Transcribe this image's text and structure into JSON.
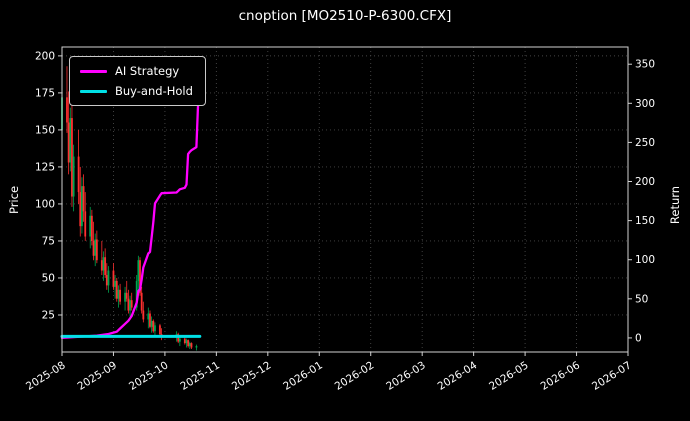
{
  "chart_data": {
    "type": "candlestick+line",
    "title": "cnoption [MO2510-P-6300.CFX]",
    "ylabel_left": "Price",
    "ylabel_right": "Return",
    "legend_position": "upper-left",
    "grid": true,
    "x_ticks": [
      "2025-08",
      "2025-09",
      "2025-10",
      "2025-11",
      "2025-12",
      "2026-01",
      "2026-02",
      "2026-03",
      "2026-04",
      "2026-05",
      "2026-06",
      "2026-07"
    ],
    "left_axis": {
      "ticks": [
        25,
        50,
        75,
        100,
        125,
        150,
        175,
        200
      ],
      "range": [
        0,
        206
      ]
    },
    "right_axis": {
      "ticks": [
        0,
        50,
        100,
        150,
        200,
        250,
        300,
        350
      ],
      "range": [
        -18,
        372
      ]
    },
    "colors": {
      "background": "#000000",
      "text": "#ffffff",
      "frame": "#d2d2d2",
      "grid": "#474747",
      "up": "#00a651",
      "down": "#ff3030",
      "ai_strategy": "#ff00ff",
      "buy_and_hold": "#00e0e6"
    },
    "candles": [
      {
        "d": "2025-08-01",
        "o": 150,
        "h": 178,
        "l": 140,
        "c": 172
      },
      {
        "d": "2025-08-04",
        "o": 172,
        "h": 193,
        "l": 148,
        "c": 155
      },
      {
        "d": "2025-08-05",
        "o": 155,
        "h": 176,
        "l": 120,
        "c": 128
      },
      {
        "d": "2025-08-06",
        "o": 128,
        "h": 165,
        "l": 122,
        "c": 158
      },
      {
        "d": "2025-08-07",
        "o": 158,
        "h": 170,
        "l": 98,
        "c": 105
      },
      {
        "d": "2025-08-08",
        "o": 105,
        "h": 140,
        "l": 95,
        "c": 132
      },
      {
        "d": "2025-08-11",
        "o": 132,
        "h": 150,
        "l": 100,
        "c": 108
      },
      {
        "d": "2025-08-12",
        "o": 108,
        "h": 125,
        "l": 78,
        "c": 85
      },
      {
        "d": "2025-08-13",
        "o": 85,
        "h": 118,
        "l": 80,
        "c": 112
      },
      {
        "d": "2025-08-14",
        "o": 112,
        "h": 120,
        "l": 88,
        "c": 95
      },
      {
        "d": "2025-08-15",
        "o": 95,
        "h": 108,
        "l": 75,
        "c": 78
      },
      {
        "d": "2025-08-18",
        "o": 78,
        "h": 98,
        "l": 70,
        "c": 92
      },
      {
        "d": "2025-08-19",
        "o": 92,
        "h": 96,
        "l": 72,
        "c": 75
      },
      {
        "d": "2025-08-20",
        "o": 75,
        "h": 88,
        "l": 62,
        "c": 65
      },
      {
        "d": "2025-08-21",
        "o": 65,
        "h": 80,
        "l": 58,
        "c": 76
      },
      {
        "d": "2025-08-22",
        "o": 76,
        "h": 82,
        "l": 60,
        "c": 62
      },
      {
        "d": "2025-08-25",
        "o": 62,
        "h": 75,
        "l": 52,
        "c": 55
      },
      {
        "d": "2025-08-26",
        "o": 55,
        "h": 68,
        "l": 48,
        "c": 64
      },
      {
        "d": "2025-08-27",
        "o": 64,
        "h": 70,
        "l": 50,
        "c": 52
      },
      {
        "d": "2025-08-28",
        "o": 52,
        "h": 60,
        "l": 42,
        "c": 45
      },
      {
        "d": "2025-08-29",
        "o": 45,
        "h": 58,
        "l": 40,
        "c": 55
      },
      {
        "d": "2025-09-01",
        "o": 55,
        "h": 60,
        "l": 42,
        "c": 44
      },
      {
        "d": "2025-09-02",
        "o": 44,
        "h": 52,
        "l": 36,
        "c": 48
      },
      {
        "d": "2025-09-03",
        "o": 48,
        "h": 50,
        "l": 34,
        "c": 36
      },
      {
        "d": "2025-09-04",
        "o": 36,
        "h": 45,
        "l": 30,
        "c": 42
      },
      {
        "d": "2025-09-05",
        "o": 42,
        "h": 46,
        "l": 32,
        "c": 34
      },
      {
        "d": "2025-09-08",
        "o": 34,
        "h": 44,
        "l": 28,
        "c": 40
      },
      {
        "d": "2025-09-09",
        "o": 40,
        "h": 48,
        "l": 34,
        "c": 36
      },
      {
        "d": "2025-09-10",
        "o": 36,
        "h": 42,
        "l": 26,
        "c": 28
      },
      {
        "d": "2025-09-11",
        "o": 28,
        "h": 38,
        "l": 24,
        "c": 35
      },
      {
        "d": "2025-09-12",
        "o": 35,
        "h": 40,
        "l": 28,
        "c": 30
      },
      {
        "d": "2025-09-15",
        "o": 30,
        "h": 52,
        "l": 28,
        "c": 48
      },
      {
        "d": "2025-09-16",
        "o": 48,
        "h": 65,
        "l": 42,
        "c": 62
      },
      {
        "d": "2025-09-17",
        "o": 62,
        "h": 64,
        "l": 38,
        "c": 40
      },
      {
        "d": "2025-09-18",
        "o": 40,
        "h": 44,
        "l": 26,
        "c": 28
      },
      {
        "d": "2025-09-19",
        "o": 28,
        "h": 34,
        "l": 20,
        "c": 22
      },
      {
        "d": "2025-09-22",
        "o": 22,
        "h": 30,
        "l": 16,
        "c": 26
      },
      {
        "d": "2025-09-23",
        "o": 26,
        "h": 28,
        "l": 16,
        "c": 17
      },
      {
        "d": "2025-09-24",
        "o": 17,
        "h": 24,
        "l": 13,
        "c": 21
      },
      {
        "d": "2025-09-25",
        "o": 21,
        "h": 22,
        "l": 13,
        "c": 14
      },
      {
        "d": "2025-09-26",
        "o": 14,
        "h": 20,
        "l": 10,
        "c": 18
      },
      {
        "d": "2025-09-29",
        "o": 18,
        "h": 19,
        "l": 11,
        "c": 12
      },
      {
        "d": "2025-09-30",
        "o": 12,
        "h": 16,
        "l": 8,
        "c": 10
      },
      {
        "d": "2025-10-08",
        "o": 10,
        "h": 14,
        "l": 7,
        "c": 12
      },
      {
        "d": "2025-10-09",
        "o": 12,
        "h": 13,
        "l": 6,
        "c": 7
      },
      {
        "d": "2025-10-10",
        "o": 7,
        "h": 10,
        "l": 4,
        "c": 9
      },
      {
        "d": "2025-10-13",
        "o": 9,
        "h": 11,
        "l": 5,
        "c": 6
      },
      {
        "d": "2025-10-14",
        "o": 6,
        "h": 9,
        "l": 3,
        "c": 8
      },
      {
        "d": "2025-10-15",
        "o": 8,
        "h": 8.5,
        "l": 3,
        "c": 4
      },
      {
        "d": "2025-10-16",
        "o": 4,
        "h": 7,
        "l": 2,
        "c": 6
      },
      {
        "d": "2025-10-17",
        "o": 6,
        "h": 6.5,
        "l": 2,
        "c": 3
      },
      {
        "d": "2025-10-20",
        "o": 3,
        "h": 5,
        "l": 1,
        "c": 4
      }
    ],
    "series": [
      {
        "name": "AI Strategy",
        "color": "#ff00ff",
        "axis": "right",
        "points": [
          [
            "2025-08-01",
            0
          ],
          [
            "2025-08-08",
            1
          ],
          [
            "2025-08-15",
            2
          ],
          [
            "2025-08-22",
            3
          ],
          [
            "2025-08-29",
            5
          ],
          [
            "2025-09-03",
            8
          ],
          [
            "2025-09-05",
            12
          ],
          [
            "2025-09-08",
            18
          ],
          [
            "2025-09-10",
            22
          ],
          [
            "2025-09-12",
            28
          ],
          [
            "2025-09-15",
            45
          ],
          [
            "2025-09-16",
            60
          ],
          [
            "2025-09-17",
            62
          ],
          [
            "2025-09-18",
            75
          ],
          [
            "2025-09-19",
            90
          ],
          [
            "2025-09-22",
            108
          ],
          [
            "2025-09-23",
            110
          ],
          [
            "2025-09-24",
            128
          ],
          [
            "2025-09-25",
            148
          ],
          [
            "2025-09-26",
            172
          ],
          [
            "2025-09-29",
            182
          ],
          [
            "2025-09-30",
            185
          ],
          [
            "2025-10-08",
            186
          ],
          [
            "2025-10-09",
            188
          ],
          [
            "2025-10-10",
            190
          ],
          [
            "2025-10-13",
            192
          ],
          [
            "2025-10-14",
            196
          ],
          [
            "2025-10-15",
            235
          ],
          [
            "2025-10-16",
            238
          ],
          [
            "2025-10-17",
            240
          ],
          [
            "2025-10-20",
            244
          ],
          [
            "2025-10-21",
            300
          ],
          [
            "2025-10-22",
            358
          ]
        ]
      },
      {
        "name": "Buy-and-Hold",
        "color": "#00e0e6",
        "axis": "right",
        "points": [
          [
            "2025-08-01",
            2
          ],
          [
            "2025-10-22",
            2
          ]
        ]
      }
    ]
  }
}
